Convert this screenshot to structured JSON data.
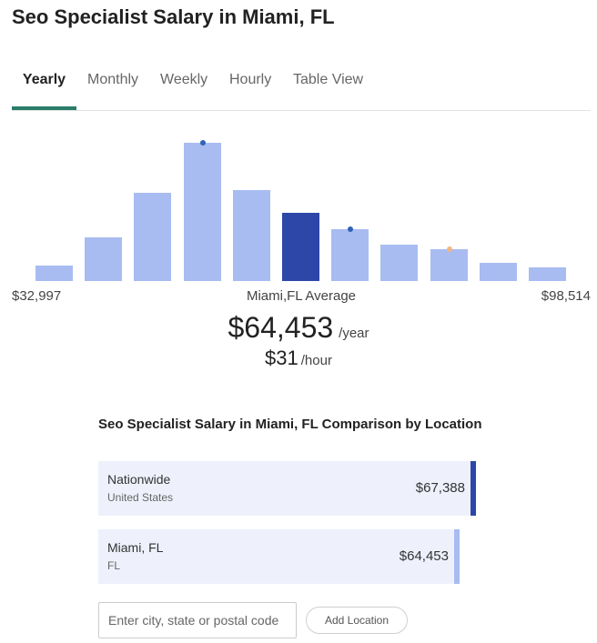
{
  "page": {
    "title": "Seo Specialist Salary in Miami, FL"
  },
  "tabs": [
    {
      "label": "Yearly",
      "active": true
    },
    {
      "label": "Monthly",
      "active": false
    },
    {
      "label": "Weekly",
      "active": false
    },
    {
      "label": "Hourly",
      "active": false
    },
    {
      "label": "Table View",
      "active": false
    }
  ],
  "chart_data": {
    "type": "bar",
    "bins": 11,
    "values": [
      11,
      31,
      63,
      99,
      65,
      49,
      37,
      26,
      23,
      13,
      10
    ],
    "highlighted_bin": 5,
    "markers": [
      {
        "bin": 3,
        "color": "#2f63b5"
      },
      {
        "bin": 6,
        "color": "#2f63b5"
      },
      {
        "bin": 8,
        "color": "#f3b67e"
      }
    ],
    "colors": {
      "bar": "#a8bcf1",
      "highlight": "#2c47a8"
    },
    "x_min_label": "$32,997",
    "x_center_label": "Miami,FL Average",
    "x_max_label": "$98,514"
  },
  "average": {
    "yearly_amount": "$64,453",
    "yearly_unit": "/year",
    "hourly_amount": "$31",
    "hourly_unit": "/hour"
  },
  "comparison": {
    "title": "Seo Specialist Salary in Miami, FL Comparison by Location",
    "locations": [
      {
        "name": "Nationwide",
        "sub": "United States",
        "amount": "$67,388",
        "relative_width": 1.0,
        "edge_color": "#2c47a8"
      },
      {
        "name": "Miami, FL",
        "sub": "FL",
        "amount": "$64,453",
        "relative_width": 0.956,
        "edge_color": "#a8bcf1"
      }
    ],
    "search_placeholder": "Enter city, state or postal code",
    "add_button_label": "Add Location"
  }
}
